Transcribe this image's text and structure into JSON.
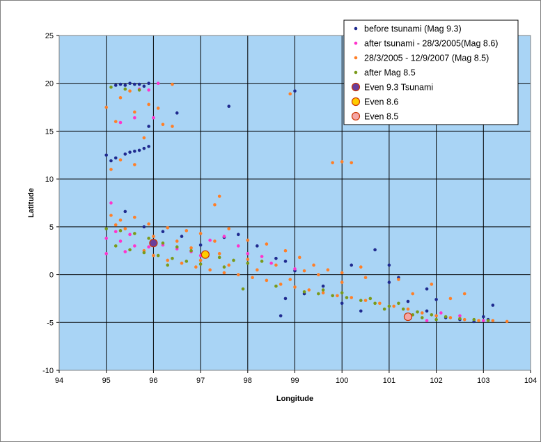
{
  "chart_data": {
    "type": "scatter",
    "xlabel": "Longitude",
    "ylabel": "Latitude",
    "xlim": [
      94,
      104
    ],
    "ylim": [
      -10,
      25
    ],
    "x_ticks": [
      "94",
      "95",
      "96",
      "97",
      "98",
      "99",
      "100",
      "101",
      "102",
      "103",
      "104"
    ],
    "y_ticks": [
      "25",
      "20",
      "15",
      "10",
      "5",
      "0",
      "-5",
      "-10"
    ],
    "grid": true,
    "legend_position": "top-right",
    "plot_background": "#a9d4f5",
    "series": [
      {
        "name": "before tsunami (Mag 9.3)",
        "color": "#1f2a8f",
        "points": [
          [
            95.3,
            19.9
          ],
          [
            95.5,
            20.0
          ],
          [
            95.7,
            19.9
          ],
          [
            95.9,
            20.0
          ],
          [
            95.4,
            19.8
          ],
          [
            95.8,
            19.7
          ],
          [
            95.6,
            19.9
          ],
          [
            95.2,
            19.8
          ],
          [
            95.0,
            12.5
          ],
          [
            95.1,
            11.9
          ],
          [
            95.4,
            12.6
          ],
          [
            95.6,
            12.9
          ],
          [
            95.8,
            13.2
          ],
          [
            95.9,
            13.4
          ],
          [
            95.7,
            13.0
          ],
          [
            95.5,
            12.8
          ],
          [
            95.2,
            12.2
          ],
          [
            95.9,
            15.5
          ],
          [
            96.5,
            16.9
          ],
          [
            97.6,
            17.6
          ],
          [
            99.0,
            19.2
          ],
          [
            95.4,
            6.6
          ],
          [
            95.8,
            5.0
          ],
          [
            96.2,
            4.5
          ],
          [
            96.6,
            4.0
          ],
          [
            97.0,
            3.1
          ],
          [
            97.5,
            3.9
          ],
          [
            97.8,
            4.2
          ],
          [
            98.2,
            3.0
          ],
          [
            98.6,
            1.7
          ],
          [
            98.8,
            1.4
          ],
          [
            99.0,
            0.4
          ],
          [
            98.8,
            -2.5
          ],
          [
            98.7,
            -4.3
          ],
          [
            99.2,
            -2.0
          ],
          [
            99.6,
            -1.2
          ],
          [
            100.2,
            1.0
          ],
          [
            100.7,
            2.6
          ],
          [
            101.0,
            1.0
          ],
          [
            101.0,
            -0.8
          ],
          [
            101.2,
            -0.3
          ],
          [
            101.4,
            -2.8
          ],
          [
            101.8,
            -3.8
          ],
          [
            102.2,
            -4.5
          ],
          [
            102.5,
            -4.7
          ],
          [
            102.8,
            -4.9
          ],
          [
            103.1,
            -4.7
          ],
          [
            103.2,
            -3.2
          ],
          [
            103.0,
            -4.4
          ],
          [
            102.0,
            -2.6
          ],
          [
            101.8,
            -1.5
          ],
          [
            100.4,
            -3.8
          ],
          [
            100.0,
            -3.0
          ]
        ]
      },
      {
        "name": "after tsunami - 28/3/2005(Mag 8.6)",
        "color": "#ff33cc",
        "points": [
          [
            95.1,
            7.5
          ],
          [
            95.2,
            4.5
          ],
          [
            95.5,
            4.2
          ],
          [
            95.0,
            3.8
          ],
          [
            95.3,
            3.5
          ],
          [
            95.6,
            3.0
          ],
          [
            95.9,
            2.9
          ],
          [
            95.0,
            2.2
          ],
          [
            95.4,
            2.4
          ],
          [
            96.2,
            3.1
          ],
          [
            96.5,
            2.7
          ],
          [
            96.8,
            2.4
          ],
          [
            97.2,
            3.6
          ],
          [
            97.5,
            4.0
          ],
          [
            97.8,
            3.0
          ],
          [
            98.0,
            2.2
          ],
          [
            98.3,
            1.9
          ],
          [
            96.0,
            16.4
          ],
          [
            95.6,
            16.4
          ],
          [
            95.3,
            15.9
          ],
          [
            95.7,
            19.4
          ],
          [
            95.9,
            19.3
          ],
          [
            96.1,
            20.0
          ],
          [
            97.0,
            2.0
          ],
          [
            98.5,
            1.2
          ],
          [
            99.0,
            0.6
          ],
          [
            102.1,
            -4.0
          ],
          [
            102.5,
            -4.3
          ],
          [
            101.8,
            -4.8
          ],
          [
            103.0,
            -4.8
          ]
        ]
      },
      {
        "name": "28/3/2005 - 12/9/2007  (Mag 8.5)",
        "color": "#ff7f27",
        "points": [
          [
            95.0,
            17.5
          ],
          [
            95.3,
            18.5
          ],
          [
            95.6,
            17.0
          ],
          [
            95.2,
            16.0
          ],
          [
            95.9,
            17.8
          ],
          [
            96.2,
            15.7
          ],
          [
            96.4,
            15.5
          ],
          [
            96.1,
            17.4
          ],
          [
            96.4,
            19.9
          ],
          [
            95.5,
            19.2
          ],
          [
            95.1,
            11.0
          ],
          [
            95.3,
            12.0
          ],
          [
            95.6,
            11.5
          ],
          [
            95.8,
            14.3
          ],
          [
            99.8,
            11.7
          ],
          [
            100.0,
            11.8
          ],
          [
            100.2,
            11.7
          ],
          [
            98.9,
            18.9
          ],
          [
            97.4,
            8.2
          ],
          [
            97.3,
            7.3
          ],
          [
            95.1,
            6.2
          ],
          [
            95.3,
            5.7
          ],
          [
            95.6,
            6.0
          ],
          [
            95.9,
            5.3
          ],
          [
            96.3,
            4.9
          ],
          [
            96.7,
            4.6
          ],
          [
            97.0,
            4.3
          ],
          [
            97.3,
            3.5
          ],
          [
            97.6,
            4.8
          ],
          [
            98.0,
            3.6
          ],
          [
            98.4,
            3.2
          ],
          [
            98.8,
            2.5
          ],
          [
            99.1,
            1.8
          ],
          [
            99.4,
            1.0
          ],
          [
            99.7,
            0.5
          ],
          [
            100.0,
            0.2
          ],
          [
            100.4,
            0.8
          ],
          [
            96.0,
            2.0
          ],
          [
            96.3,
            1.5
          ],
          [
            96.6,
            1.2
          ],
          [
            96.9,
            0.8
          ],
          [
            97.2,
            0.5
          ],
          [
            97.5,
            0.2
          ],
          [
            97.8,
            0.0
          ],
          [
            98.1,
            -0.3
          ],
          [
            98.4,
            -0.6
          ],
          [
            98.7,
            -1.0
          ],
          [
            99.0,
            -1.3
          ],
          [
            99.3,
            -1.6
          ],
          [
            99.6,
            -1.9
          ],
          [
            99.9,
            -2.2
          ],
          [
            100.2,
            -2.4
          ],
          [
            100.5,
            -2.7
          ],
          [
            100.8,
            -3.0
          ],
          [
            101.1,
            -3.3
          ],
          [
            101.4,
            -3.6
          ],
          [
            101.7,
            -4.0
          ],
          [
            102.0,
            -4.3
          ],
          [
            102.3,
            -4.5
          ],
          [
            102.6,
            -4.7
          ],
          [
            102.9,
            -4.8
          ],
          [
            103.2,
            -4.8
          ],
          [
            103.5,
            -4.9
          ],
          [
            101.5,
            -2.0
          ],
          [
            101.9,
            -1.0
          ],
          [
            102.3,
            -2.5
          ],
          [
            102.6,
            -2.0
          ],
          [
            101.2,
            -0.5
          ],
          [
            100.5,
            -0.3
          ],
          [
            97.0,
            1.5
          ],
          [
            97.6,
            1.0
          ],
          [
            98.2,
            0.5
          ],
          [
            96.5,
            3.5
          ],
          [
            96.0,
            4.0
          ],
          [
            95.4,
            4.8
          ],
          [
            95.2,
            5.2
          ],
          [
            95.8,
            2.5
          ],
          [
            96.8,
            2.8
          ],
          [
            97.4,
            2.2
          ],
          [
            98.0,
            1.6
          ],
          [
            98.6,
            1.0
          ],
          [
            99.2,
            0.4
          ],
          [
            98.9,
            -0.5
          ],
          [
            99.5,
            0.0
          ],
          [
            100.0,
            -0.8
          ]
        ]
      },
      {
        "name": "after Mag 8.5",
        "color": "#7a9a1a",
        "points": [
          [
            95.0,
            4.8
          ],
          [
            95.3,
            4.6
          ],
          [
            95.6,
            4.3
          ],
          [
            95.9,
            3.8
          ],
          [
            96.2,
            3.3
          ],
          [
            96.5,
            2.9
          ],
          [
            96.8,
            2.5
          ],
          [
            97.1,
            2.1
          ],
          [
            97.4,
            1.8
          ],
          [
            97.7,
            1.5
          ],
          [
            98.0,
            1.2
          ],
          [
            95.2,
            3.0
          ],
          [
            95.5,
            2.6
          ],
          [
            95.8,
            2.3
          ],
          [
            96.1,
            2.0
          ],
          [
            96.4,
            1.7
          ],
          [
            96.7,
            1.4
          ],
          [
            97.0,
            1.1
          ],
          [
            99.2,
            -1.8
          ],
          [
            99.5,
            -2.0
          ],
          [
            99.8,
            -2.2
          ],
          [
            100.1,
            -2.4
          ],
          [
            100.4,
            -2.7
          ],
          [
            100.7,
            -3.0
          ],
          [
            101.0,
            -3.3
          ],
          [
            101.3,
            -3.6
          ],
          [
            101.6,
            -3.9
          ],
          [
            101.9,
            -4.2
          ],
          [
            102.2,
            -4.4
          ],
          [
            102.5,
            -4.6
          ],
          [
            102.8,
            -4.7
          ],
          [
            103.1,
            -4.8
          ],
          [
            99.6,
            -1.6
          ],
          [
            100.0,
            -1.9
          ],
          [
            100.6,
            -2.5
          ],
          [
            101.2,
            -3.0
          ],
          [
            100.9,
            -3.6
          ],
          [
            101.5,
            -4.2
          ],
          [
            95.4,
            19.4
          ],
          [
            95.7,
            19.3
          ],
          [
            95.1,
            19.6
          ],
          [
            96.3,
            1.0
          ],
          [
            97.5,
            0.8
          ],
          [
            98.3,
            1.4
          ],
          [
            97.9,
            -1.5
          ],
          [
            98.6,
            -1.2
          ],
          [
            101.7,
            -4.5
          ],
          [
            102.0,
            -4.7
          ]
        ]
      },
      {
        "name": "Even 9.3 Tsunami",
        "color": "#6a3d9a",
        "points": [
          [
            96.0,
            3.3
          ]
        ]
      },
      {
        "name": "Even 8.6",
        "color": "#ffcc00",
        "points": [
          [
            97.1,
            2.1
          ]
        ]
      },
      {
        "name": "Even 8.5",
        "color": "#f4a6a6",
        "points": [
          [
            101.4,
            -4.4
          ]
        ]
      }
    ]
  }
}
